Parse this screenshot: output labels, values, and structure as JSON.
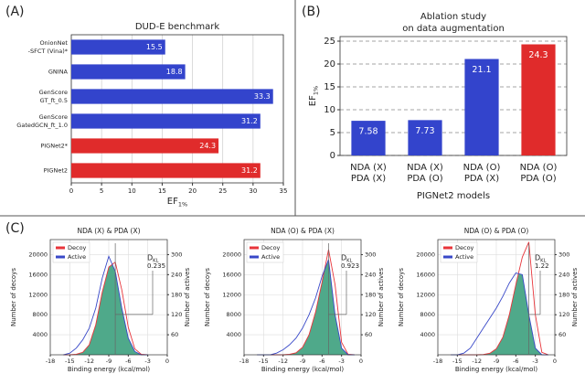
{
  "panel_labels": [
    "(A)",
    "(B)",
    "(C)"
  ],
  "chart_data": [
    {
      "type": "hbar",
      "title": "DUD-E benchmark",
      "categories": [
        [
          "OnionNet",
          "-SFCT (Vina)*"
        ],
        [
          "GNINA"
        ],
        [
          "GenScore",
          "GT_ft_0.5"
        ],
        [
          "GenScore",
          "GatedGCN_ft_1.0"
        ],
        [
          "PIGNet2*"
        ],
        [
          "PIGNet2"
        ]
      ],
      "values": [
        15.5,
        18.8,
        33.3,
        31.2,
        24.3,
        31.2
      ],
      "colors": [
        "#3344cc",
        "#3344cc",
        "#3344cc",
        "#3344cc",
        "#e02b2b",
        "#e02b2b"
      ],
      "xlim": [
        0,
        35
      ],
      "xticks": [
        0,
        5,
        10,
        15,
        20,
        25,
        30,
        35
      ],
      "xlabel": {
        "text": "EF",
        "sub": "1%"
      },
      "grid": true
    },
    {
      "type": "bar",
      "title": [
        "Ablation study",
        "on data augmentation"
      ],
      "categories": [
        [
          "NDA (X)",
          "PDA (X)"
        ],
        [
          "NDA (X)",
          "PDA (O)"
        ],
        [
          "NDA (O)",
          "PDA (X)"
        ],
        [
          "NDA (O)",
          "PDA (O)"
        ]
      ],
      "values": [
        7.58,
        7.73,
        21.1,
        24.3
      ],
      "colors": [
        "#3344cc",
        "#3344cc",
        "#3344cc",
        "#e02b2b"
      ],
      "ylim": [
        0,
        26
      ],
      "yticks": [
        0,
        5,
        10,
        15,
        20,
        25
      ],
      "ylabel": {
        "text": "EF",
        "sub": "1%"
      },
      "xlabel": "PIGNet2 models",
      "grid": true
    },
    {
      "type": "density",
      "title": "NDA (X) & PDA (X)",
      "x": [
        -16,
        -15,
        -14,
        -13,
        -12,
        -11,
        -10,
        -9,
        -8,
        -7,
        -6,
        -5,
        -4,
        -3
      ],
      "series": [
        {
          "name": "Decoy",
          "color": "#e8343a",
          "values": [
            0,
            0,
            100,
            500,
            2000,
            6000,
            12500,
            17500,
            18500,
            13000,
            5500,
            1200,
            100,
            0
          ]
        },
        {
          "name": "Active",
          "color": "#3848c8",
          "axis": "y2",
          "values": [
            0,
            5,
            20,
            45,
            80,
            140,
            230,
            295,
            250,
            140,
            50,
            10,
            0,
            0
          ]
        }
      ],
      "overlap_color": "#4fa98a",
      "xlim": [
        -18,
        0
      ],
      "xticks": [
        -18,
        -15,
        -12,
        -9,
        -6,
        -3,
        0
      ],
      "ylim": [
        0,
        23000
      ],
      "yticks": [
        4000,
        8000,
        12000,
        16000,
        20000
      ],
      "y2lim": [
        0,
        345
      ],
      "y2ticks": [
        60,
        120,
        180,
        240,
        300
      ],
      "xlabel": "Binding energy (kcal/mol)",
      "ylabel": "Number of decoys",
      "y2label": "Number of actives",
      "annotation": {
        "text": "D",
        "sub": "KL",
        "value": 0.235
      },
      "grid": true
    },
    {
      "type": "density",
      "title": "NDA (O) & PDA (X)",
      "x": [
        -16,
        -15,
        -14,
        -13,
        -12,
        -11,
        -10,
        -9,
        -8,
        -7,
        -6,
        -5,
        -4,
        -3,
        -2,
        -1
      ],
      "series": [
        {
          "name": "Decoy",
          "color": "#e8343a",
          "values": [
            0,
            0,
            0,
            0,
            0,
            100,
            400,
            1500,
            4000,
            8500,
            14500,
            21000,
            14000,
            2500,
            100,
            0
          ]
        },
        {
          "name": "Active",
          "color": "#3848c8",
          "axis": "y2",
          "values": [
            0,
            0,
            0,
            5,
            15,
            30,
            50,
            80,
            120,
            170,
            235,
            285,
            120,
            20,
            0,
            0
          ]
        }
      ],
      "overlap_color": "#4fa98a",
      "xlim": [
        -18,
        0
      ],
      "xticks": [
        -18,
        -15,
        -12,
        -9,
        -6,
        -3,
        0
      ],
      "ylim": [
        0,
        23000
      ],
      "yticks": [
        4000,
        8000,
        12000,
        16000,
        20000
      ],
      "y2lim": [
        0,
        345
      ],
      "y2ticks": [
        60,
        120,
        180,
        240,
        300
      ],
      "xlabel": "Binding energy (kcal/mol)",
      "ylabel": "Number of decoys",
      "y2label": "Number of actives",
      "annotation": {
        "text": "D",
        "sub": "KL",
        "value": 0.923
      },
      "grid": true
    },
    {
      "type": "density",
      "title": "NDA (O) & PDA (O)",
      "x": [
        -16,
        -15,
        -14,
        -13,
        -12,
        -11,
        -10,
        -9,
        -8,
        -7,
        -6,
        -5,
        -4,
        -3,
        -2,
        -1
      ],
      "series": [
        {
          "name": "Decoy",
          "color": "#e8343a",
          "values": [
            0,
            0,
            0,
            0,
            0,
            50,
            300,
            1200,
            3500,
            8000,
            14000,
            19500,
            22500,
            8000,
            500,
            0
          ]
        },
        {
          "name": "Active",
          "color": "#3848c8",
          "axis": "y2",
          "values": [
            0,
            0,
            5,
            20,
            50,
            80,
            110,
            140,
            175,
            215,
            245,
            240,
            120,
            20,
            0,
            0
          ]
        }
      ],
      "overlap_color": "#4fa98a",
      "xlim": [
        -18,
        0
      ],
      "xticks": [
        -18,
        -15,
        -12,
        -9,
        -6,
        -3,
        0
      ],
      "ylim": [
        0,
        23000
      ],
      "yticks": [
        4000,
        8000,
        12000,
        16000,
        20000
      ],
      "y2lim": [
        0,
        345
      ],
      "y2ticks": [
        60,
        120,
        180,
        240,
        300
      ],
      "xlabel": "Binding energy (kcal/mol)",
      "ylabel": "Number of decoys",
      "y2label": "Number of actives",
      "annotation": {
        "text": "D",
        "sub": "KL",
        "value": 1.22
      },
      "grid": true
    }
  ]
}
